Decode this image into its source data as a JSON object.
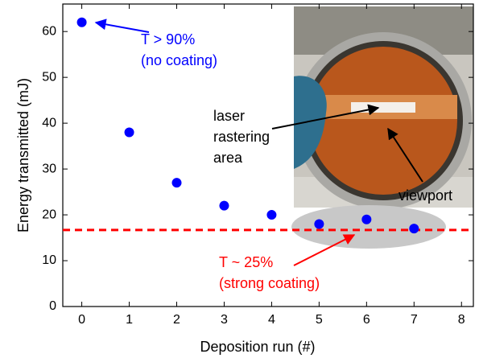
{
  "chart_data": {
    "type": "scatter",
    "x_label": "Deposition  run (#)",
    "y_label": "Energy transmitted (mJ)",
    "x": [
      0,
      1,
      2,
      3,
      4,
      5,
      6,
      7
    ],
    "series": [
      {
        "color": "#0000ff",
        "values": [
          62,
          38,
          27,
          22,
          20,
          18,
          19,
          17
        ]
      }
    ],
    "xlim": [
      -0.4,
      8.25
    ],
    "ylim": [
      0,
      66
    ],
    "xticks": [
      0,
      1,
      2,
      3,
      4,
      5,
      6,
      7,
      8
    ],
    "yticks": [
      0,
      10,
      20,
      30,
      40,
      50,
      60
    ],
    "reference_line": {
      "value": 16.7,
      "color": "#ff0000"
    },
    "annotations": {
      "high": [
        "T > 90%",
        "(no coating)"
      ],
      "low": [
        "T ~ 25%",
        "(strong coating)"
      ],
      "photo": [
        "laser",
        "rastering",
        "area",
        "viewport"
      ]
    }
  }
}
